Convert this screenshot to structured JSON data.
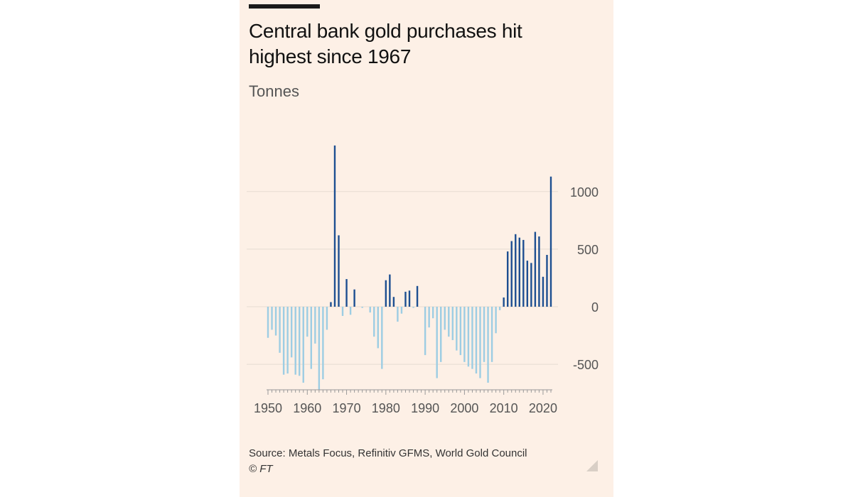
{
  "header": {
    "title": "Central bank gold purchases hit highest since 1967",
    "unit_label": "Tonnes"
  },
  "footer": {
    "source": "Source: Metals Focus, Refinitiv GFMS, World Gold Council",
    "copyright": "© FT"
  },
  "colors": {
    "background": "#fdf0e6",
    "positive_bar": "#1d4f91",
    "negative_bar": "#9dcde3",
    "gridline": "#e6dcd2",
    "axis_text": "#555555"
  },
  "chart_data": {
    "type": "bar",
    "title": "Central bank gold purchases hit highest since 1967",
    "ylabel": "Tonnes",
    "xlabel": "",
    "ylim": [
      -720,
      1400
    ],
    "xlim": [
      1950,
      2022
    ],
    "y_ticks": [
      1000,
      500,
      0,
      -500
    ],
    "y_tick_labels": [
      "1000",
      "500",
      "0",
      "-500"
    ],
    "x_ticks": [
      1950,
      1960,
      1970,
      1980,
      1990,
      2000,
      2010,
      2020
    ],
    "x_tick_labels": [
      "1950",
      "1960",
      "1970",
      "1980",
      "1990",
      "2000",
      "2010",
      "2020"
    ],
    "grid": true,
    "y_axis_position": "right",
    "years": [
      1950,
      1951,
      1952,
      1953,
      1954,
      1955,
      1956,
      1957,
      1958,
      1959,
      1960,
      1961,
      1962,
      1963,
      1964,
      1965,
      1966,
      1967,
      1968,
      1969,
      1970,
      1971,
      1972,
      1973,
      1974,
      1975,
      1976,
      1977,
      1978,
      1979,
      1980,
      1981,
      1982,
      1983,
      1984,
      1985,
      1986,
      1987,
      1988,
      1989,
      1990,
      1991,
      1992,
      1993,
      1994,
      1995,
      1996,
      1997,
      1998,
      1999,
      2000,
      2001,
      2002,
      2003,
      2004,
      2005,
      2006,
      2007,
      2008,
      2009,
      2010,
      2011,
      2012,
      2013,
      2014,
      2015,
      2016,
      2017,
      2018,
      2019,
      2020,
      2021,
      2022
    ],
    "values": [
      -270,
      -200,
      -250,
      -400,
      -590,
      -580,
      -440,
      -590,
      -600,
      -660,
      -260,
      -540,
      -320,
      -720,
      -630,
      -200,
      40,
      1400,
      620,
      -80,
      240,
      -70,
      150,
      0,
      -10,
      0,
      -50,
      -260,
      -360,
      -540,
      230,
      280,
      85,
      -130,
      -60,
      130,
      140,
      -10,
      180,
      0,
      -420,
      -180,
      -100,
      -620,
      -480,
      -200,
      -260,
      -290,
      -380,
      -420,
      -480,
      -520,
      -540,
      -580,
      -620,
      -480,
      -660,
      -480,
      -230,
      -30,
      80,
      480,
      570,
      630,
      600,
      580,
      400,
      380,
      650,
      610,
      260,
      450,
      1130
    ]
  }
}
